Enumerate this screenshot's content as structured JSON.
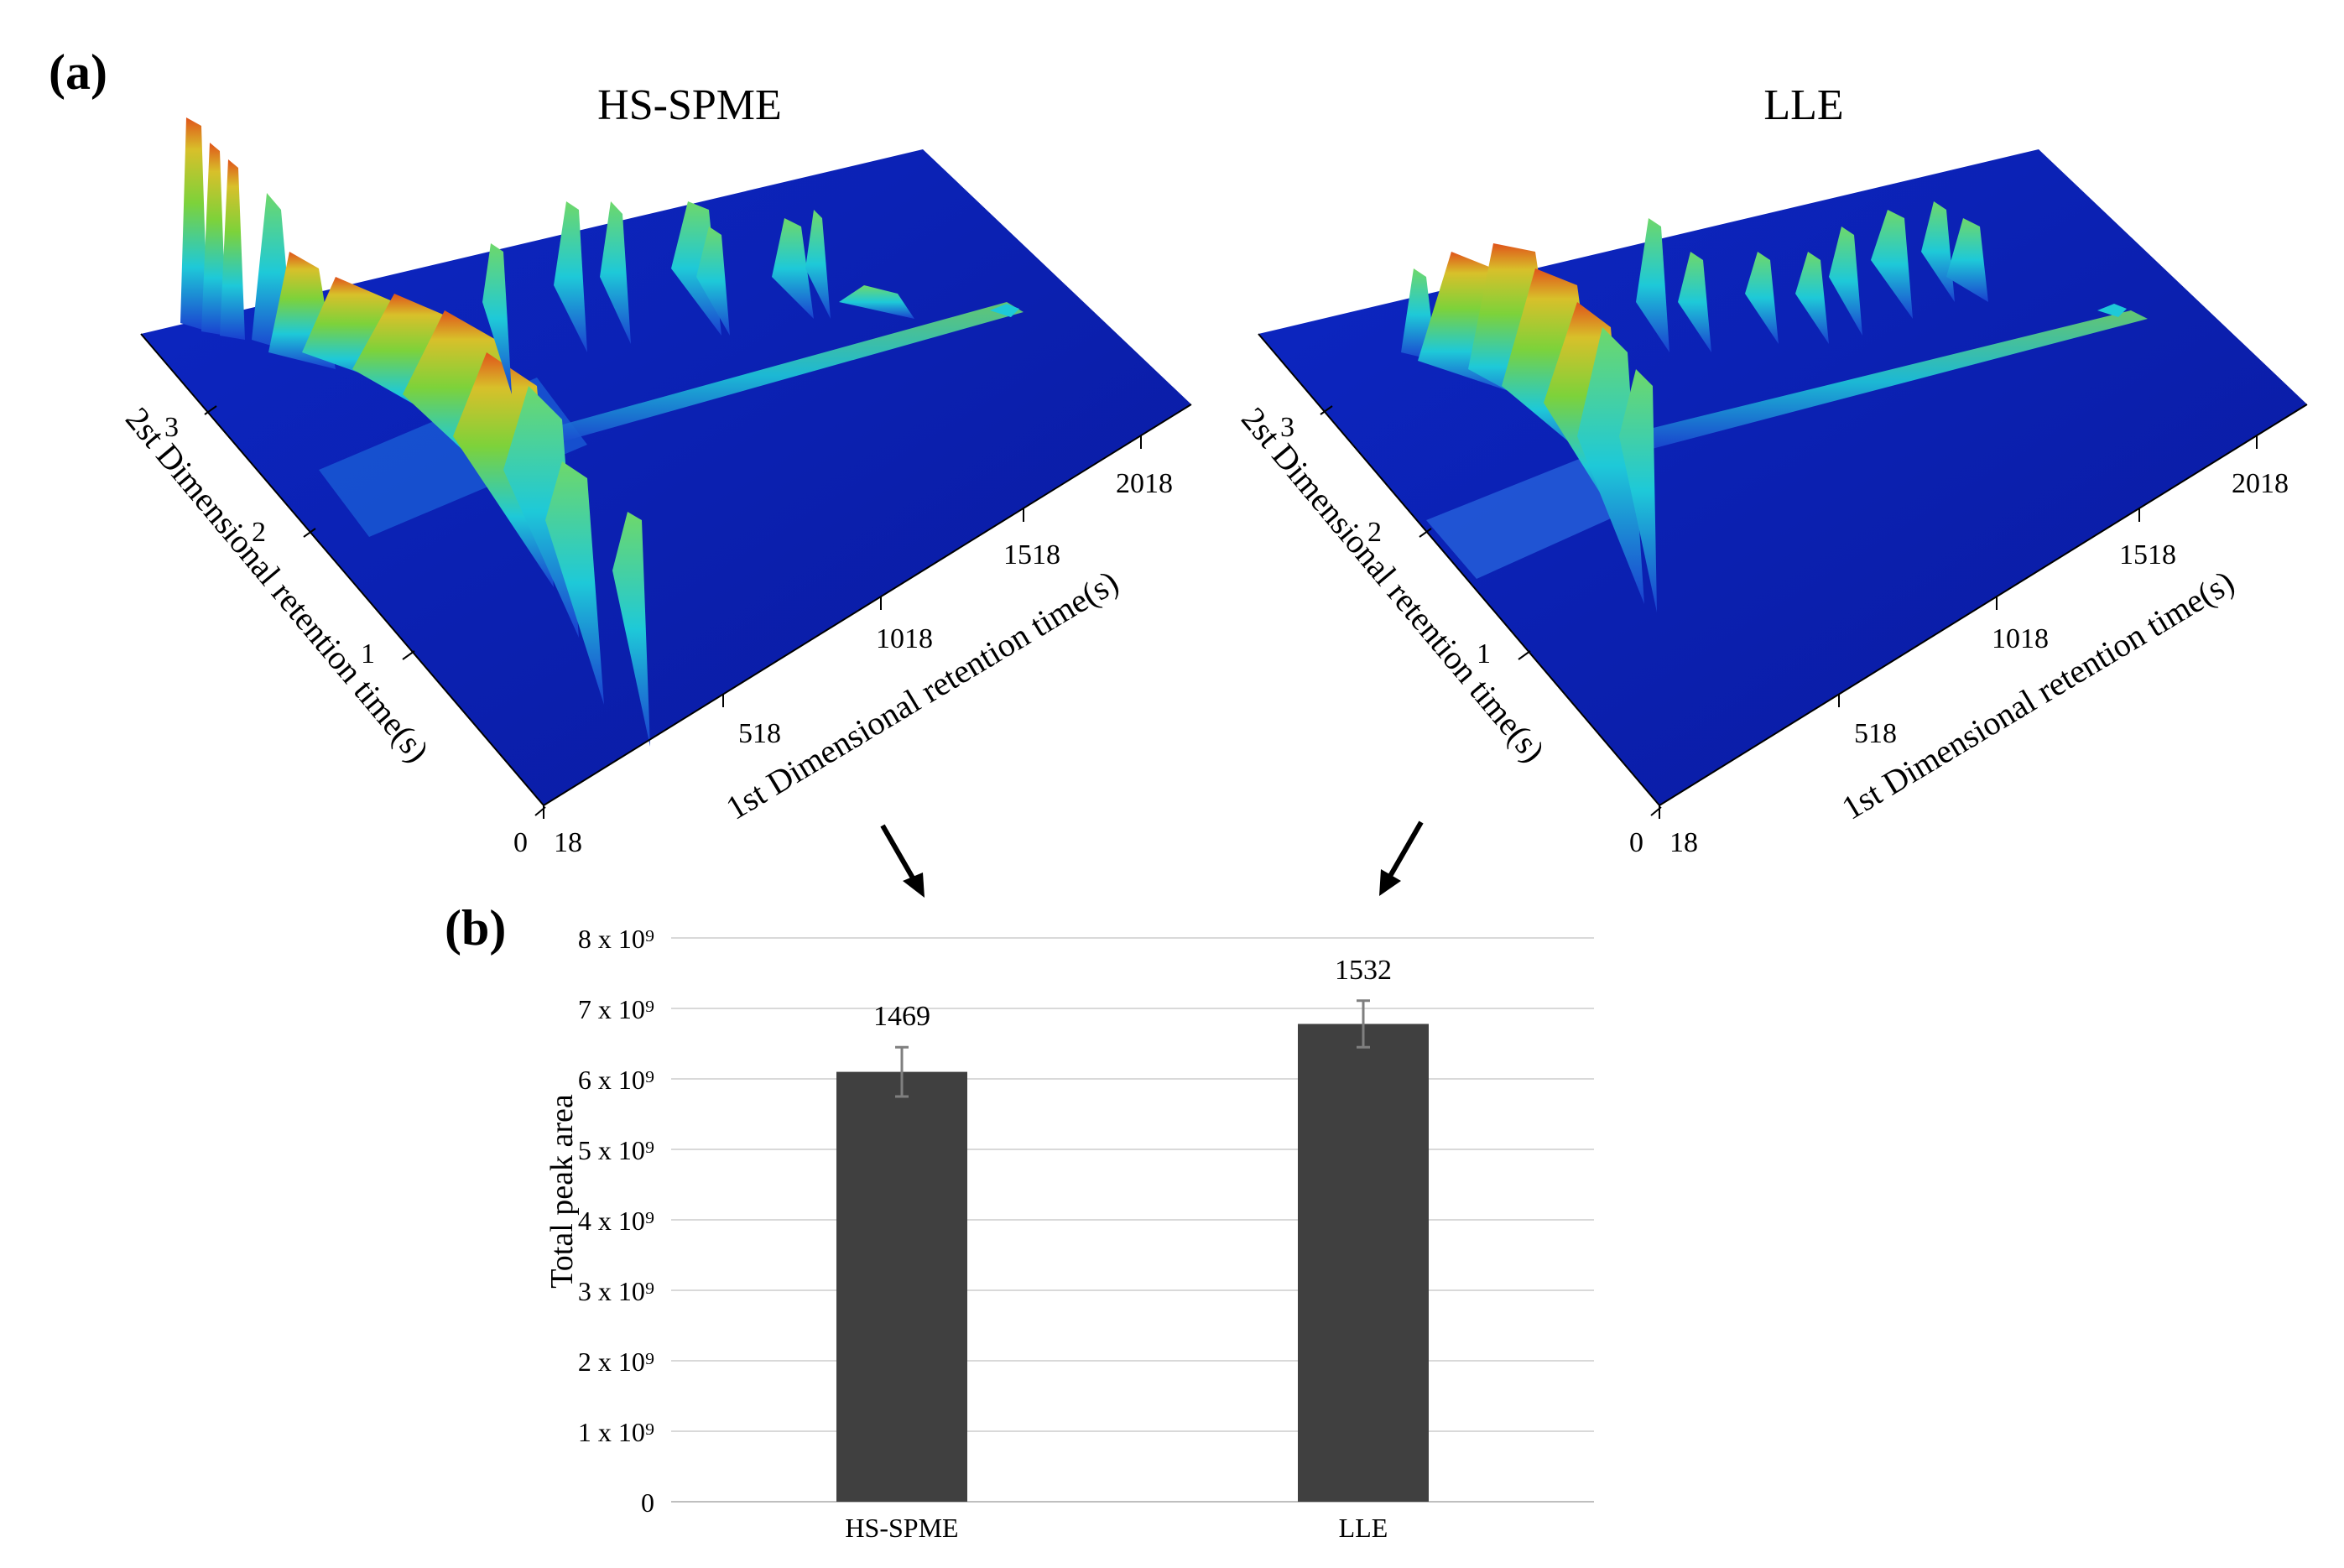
{
  "panel_a": {
    "label": "(a)",
    "plots": [
      {
        "title": "HS-SPME",
        "y_axis_label": "2st Dimensional retention time(s)",
        "x_axis_label": "1st Dimensional retention time(s)",
        "y_ticks": [
          "0",
          "1",
          "2",
          "3"
        ],
        "x_ticks": [
          "18",
          "518",
          "1018",
          "1518",
          "2018"
        ]
      },
      {
        "title": "LLE",
        "y_axis_label": "2st Dimensional retention time(s)",
        "x_axis_label": "1st Dimensional retention time(s)",
        "y_ticks": [
          "0",
          "1",
          "2",
          "3"
        ],
        "x_ticks": [
          "18",
          "518",
          "1018",
          "1518",
          "2018"
        ]
      }
    ],
    "colors": {
      "base": "#0a1fb8",
      "low": "#1ec9d8",
      "mid": "#7dd23a",
      "high": "#e0531a"
    }
  },
  "panel_b": {
    "label": "(b)"
  },
  "chart_data": {
    "type": "bar",
    "categories": [
      "HS-SPME",
      "LLE"
    ],
    "values": [
      6100000000.0,
      6780000000.0
    ],
    "errors": [
      350000000.0,
      330000000.0
    ],
    "data_labels": [
      "1469",
      "1532"
    ],
    "ylabel": "Total peak area",
    "xlabel": "",
    "ylim": [
      0,
      8000000000.0
    ],
    "y_ticks": [
      0,
      1000000000.0,
      2000000000.0,
      3000000000.0,
      4000000000.0,
      5000000000.0,
      6000000000.0,
      7000000000.0,
      8000000000.0
    ],
    "y_tick_labels": [
      "0",
      "1 x 10⁹",
      "2 x 10⁹",
      "3 x 10⁹",
      "4 x 10⁹",
      "5 x 10⁹",
      "6 x 10⁹",
      "7 x 10⁹",
      "8 x 10⁹"
    ],
    "bar_color": "#404040",
    "grid": true
  }
}
